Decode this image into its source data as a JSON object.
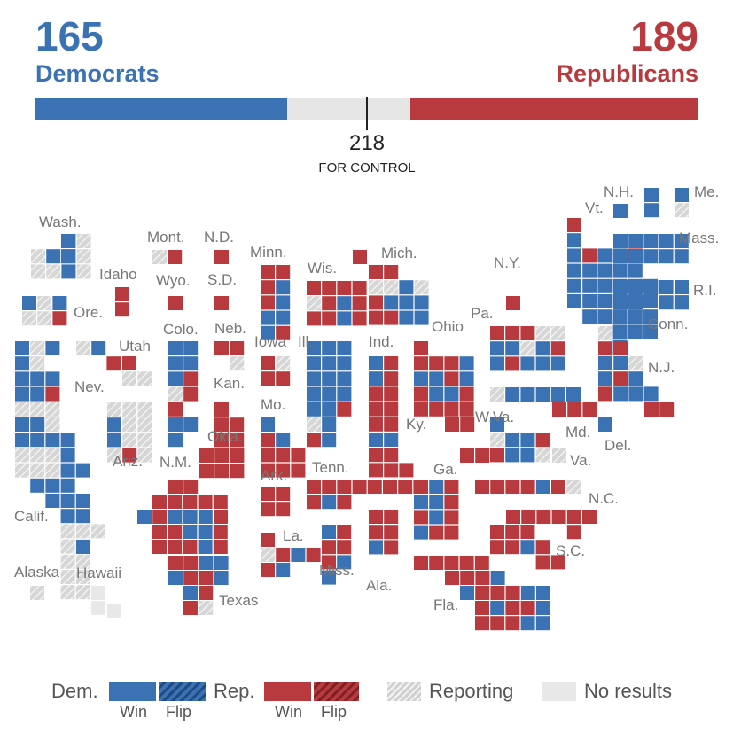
{
  "header": {
    "dem_count": "165",
    "dem_label": "Democrats",
    "rep_count": "189",
    "rep_label": "Republicans",
    "control_number": "218",
    "control_label": "FOR CONTROL"
  },
  "progress": {
    "total_seats": 435,
    "dem_seats": 165,
    "rep_seats": 189,
    "control_threshold": 218
  },
  "colors": {
    "dem": "#3a72b4",
    "dem_flip": "#1f4a80",
    "rep": "#b83a3e",
    "rep_flip": "#7e2024",
    "reporting": "#d6d6d6",
    "no_results": "#e8e8e8",
    "label": "#777777"
  },
  "state_labels": [
    {
      "name": "Wash."
    },
    {
      "name": "Idaho"
    },
    {
      "name": "Mont."
    },
    {
      "name": "N.D."
    },
    {
      "name": "Minn."
    },
    {
      "name": "Wis."
    },
    {
      "name": "Mich."
    },
    {
      "name": "N.Y."
    },
    {
      "name": "Vt."
    },
    {
      "name": "N.H."
    },
    {
      "name": "Me."
    },
    {
      "name": "Mass."
    },
    {
      "name": "R.I."
    },
    {
      "name": "Conn."
    },
    {
      "name": "Ore."
    },
    {
      "name": "Wyo."
    },
    {
      "name": "S.D."
    },
    {
      "name": "Colo."
    },
    {
      "name": "Neb."
    },
    {
      "name": "Iowa"
    },
    {
      "name": "Ill."
    },
    {
      "name": "Ind."
    },
    {
      "name": "Ohio"
    },
    {
      "name": "Pa."
    },
    {
      "name": "N.J."
    },
    {
      "name": "Utah"
    },
    {
      "name": "Nev."
    },
    {
      "name": "Kan."
    },
    {
      "name": "Mo."
    },
    {
      "name": "Ky."
    },
    {
      "name": "W.Va."
    },
    {
      "name": "Md."
    },
    {
      "name": "Del."
    },
    {
      "name": "Va."
    },
    {
      "name": "Ariz."
    },
    {
      "name": "N.M."
    },
    {
      "name": "Okla."
    },
    {
      "name": "Ark."
    },
    {
      "name": "Tenn."
    },
    {
      "name": "Ga."
    },
    {
      "name": "N.C."
    },
    {
      "name": "Calif."
    },
    {
      "name": "La."
    },
    {
      "name": "S.C."
    },
    {
      "name": "Alaska"
    },
    {
      "name": "Hawaii"
    },
    {
      "name": "Miss."
    },
    {
      "name": "Ala."
    },
    {
      "name": "Texas"
    },
    {
      "name": "Fla."
    }
  ],
  "legend": {
    "dem_label": "Dem.",
    "rep_label": "Rep.",
    "win_label": "Win",
    "flip_label": "Flip",
    "reporting_label": "Reporting",
    "no_results_label": "No results"
  }
}
